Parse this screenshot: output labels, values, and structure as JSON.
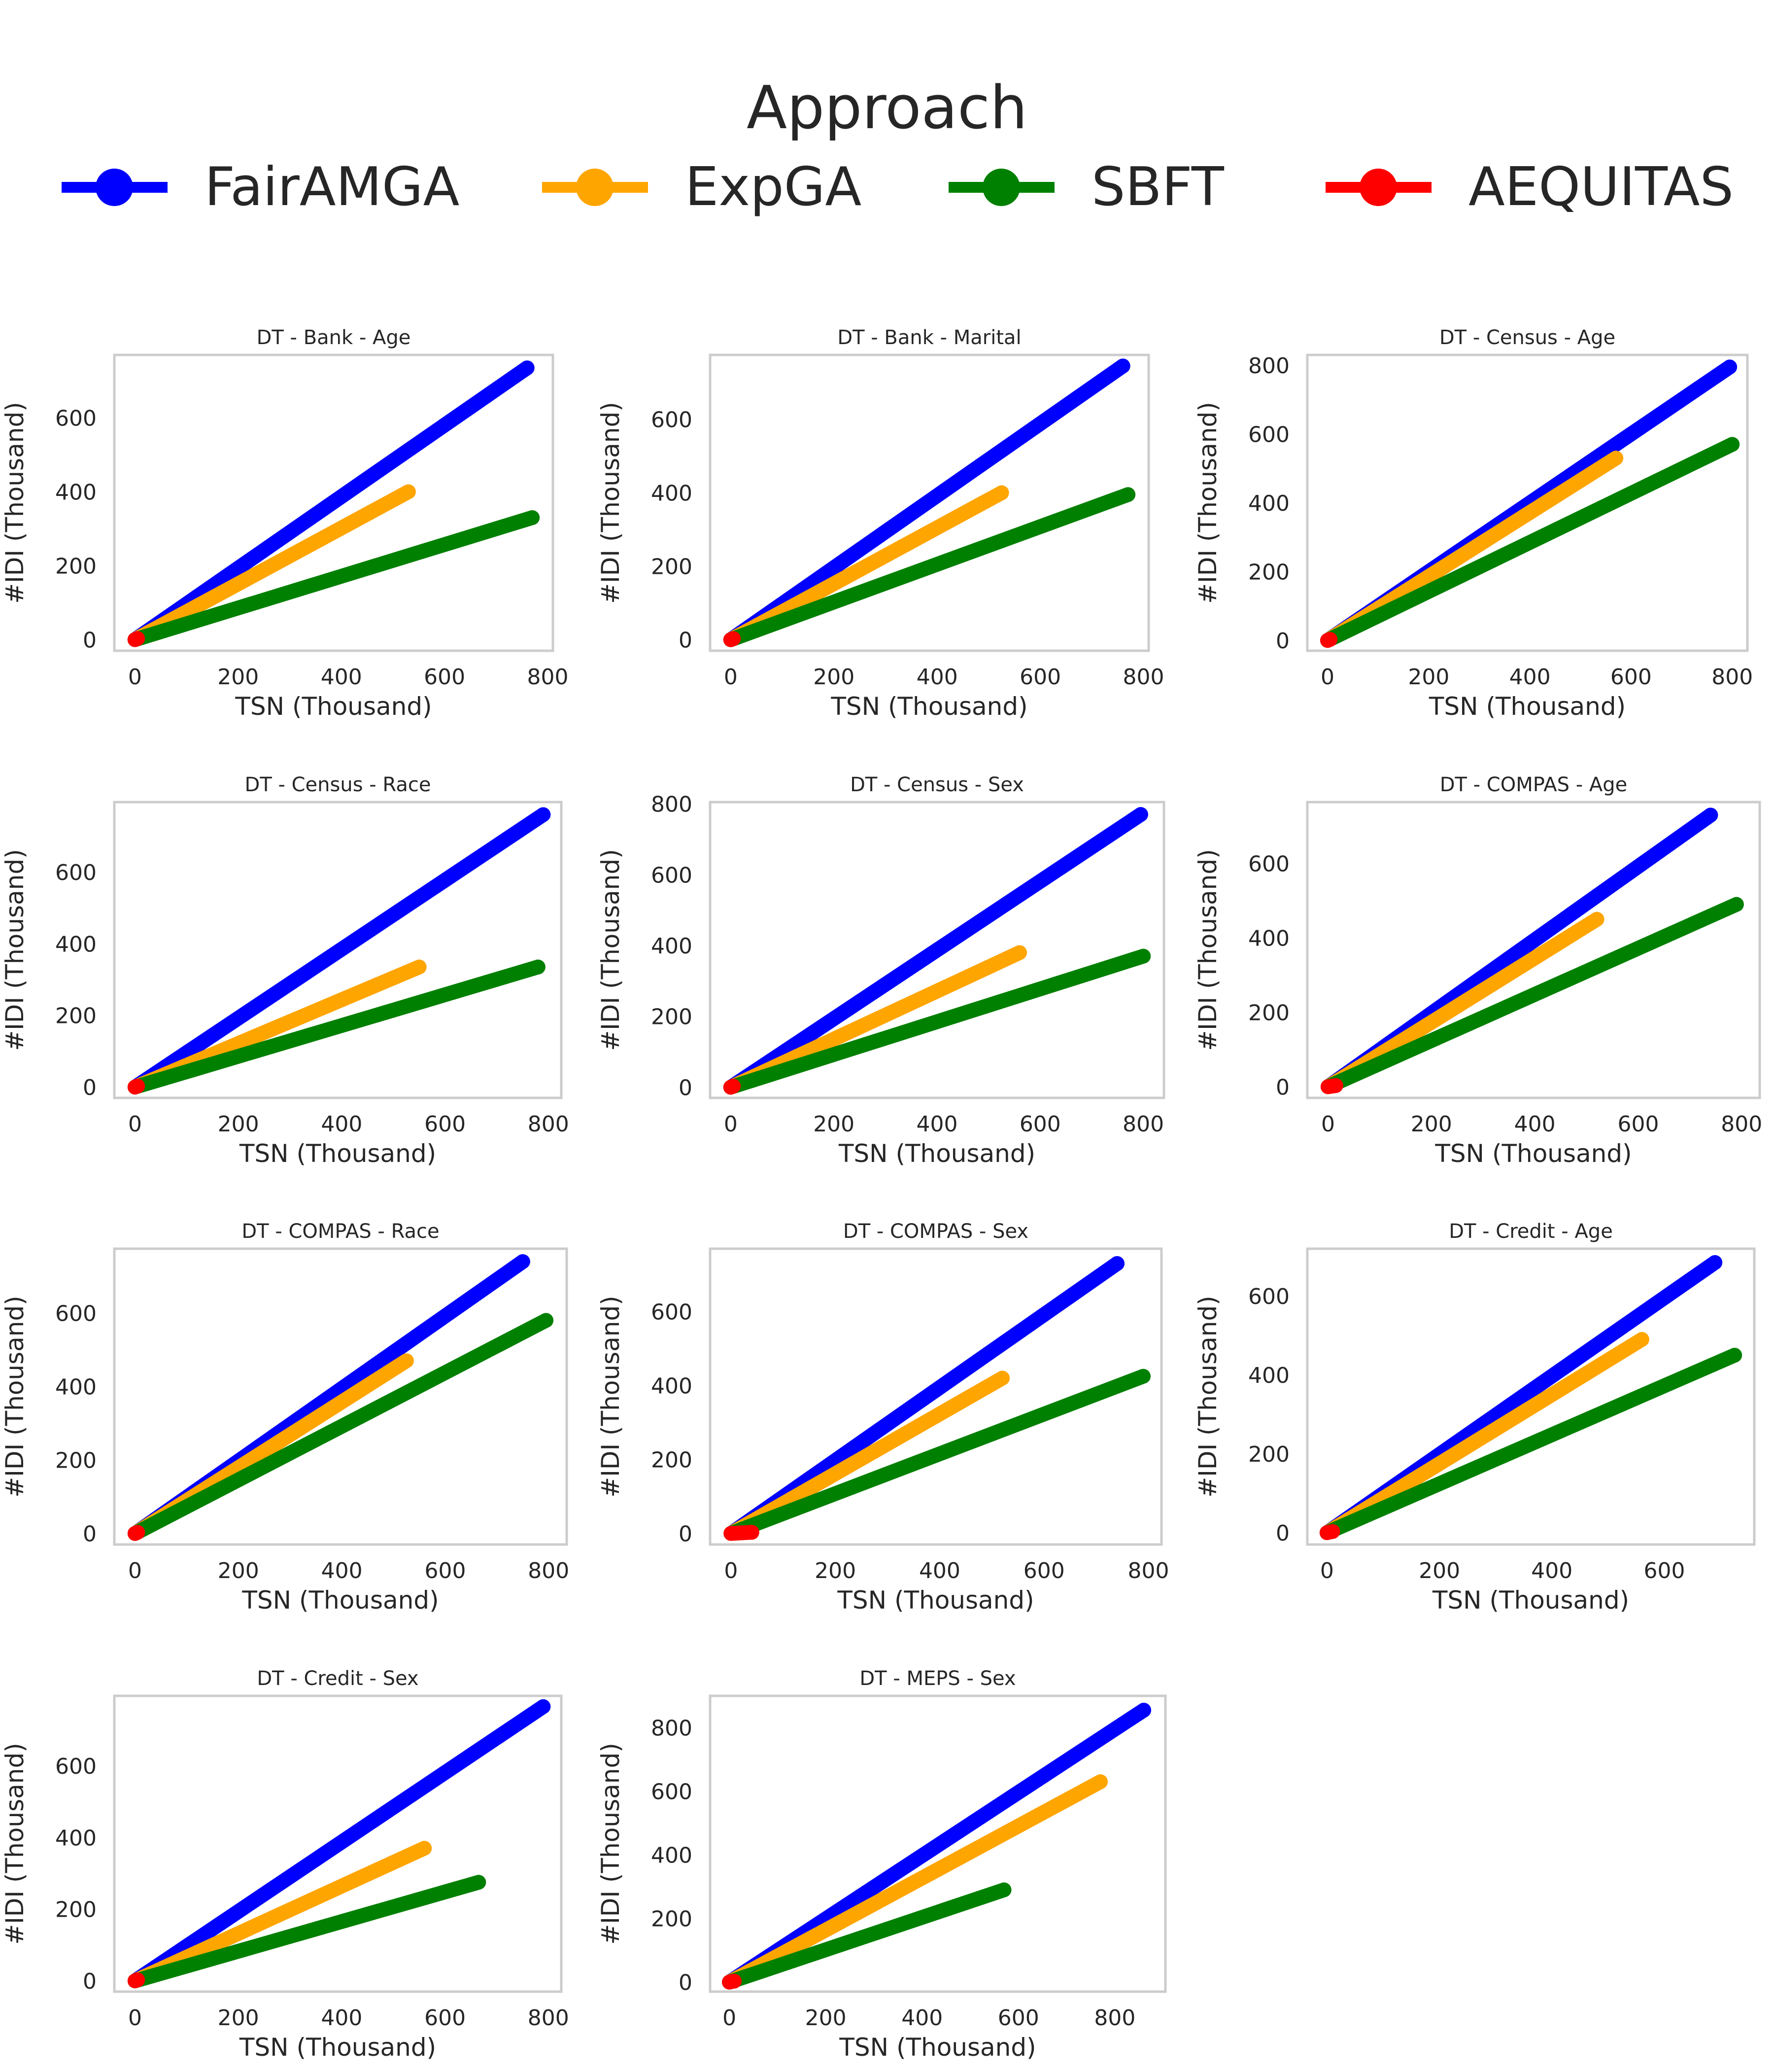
{
  "legend": {
    "title": "Approach",
    "entries": [
      {
        "name": "FairAMGA",
        "color": "#0000ff"
      },
      {
        "name": "ExpGA",
        "color": "#ffa500"
      },
      {
        "name": "SBFT",
        "color": "#008000"
      },
      {
        "name": "AEQUITAS",
        "color": "#ff0000"
      }
    ]
  },
  "axis_labels": {
    "x": "TSN (Thousand)",
    "y": "#IDI (Thousand)"
  },
  "chart_data": [
    {
      "type": "line",
      "title": "DT - Bank - Age",
      "xlabel": "TSN (Thousand)",
      "ylabel": "#IDI (Thousand)",
      "xlim": [
        -40,
        810
      ],
      "ylim": [
        -30,
        770
      ],
      "xticks": [
        0,
        200,
        400,
        600,
        800
      ],
      "yticks": [
        0,
        200,
        400,
        600
      ],
      "series": [
        {
          "name": "FairAMGA",
          "x": [
            0,
            760
          ],
          "y": [
            0,
            735
          ]
        },
        {
          "name": "ExpGA",
          "x": [
            0,
            530
          ],
          "y": [
            0,
            400
          ]
        },
        {
          "name": "SBFT",
          "x": [
            0,
            770
          ],
          "y": [
            0,
            330
          ]
        },
        {
          "name": "AEQUITAS",
          "x": [
            0,
            5
          ],
          "y": [
            0,
            3
          ]
        }
      ]
    },
    {
      "type": "line",
      "title": "DT - Bank - Marital",
      "xlabel": "TSN (Thousand)",
      "ylabel": "#IDI (Thousand)",
      "xlim": [
        -40,
        810
      ],
      "ylim": [
        -30,
        775
      ],
      "xticks": [
        0,
        200,
        400,
        600,
        800
      ],
      "yticks": [
        0,
        200,
        400,
        600
      ],
      "series": [
        {
          "name": "FairAMGA",
          "x": [
            0,
            760
          ],
          "y": [
            0,
            745
          ]
        },
        {
          "name": "ExpGA",
          "x": [
            0,
            525
          ],
          "y": [
            0,
            400
          ]
        },
        {
          "name": "SBFT",
          "x": [
            0,
            770
          ],
          "y": [
            0,
            395
          ]
        },
        {
          "name": "AEQUITAS",
          "x": [
            0,
            5
          ],
          "y": [
            0,
            3
          ]
        }
      ]
    },
    {
      "type": "line",
      "title": "DT - Census - Age",
      "xlabel": "TSN (Thousand)",
      "ylabel": "#IDI (Thousand)",
      "xlim": [
        -40,
        830
      ],
      "ylim": [
        -30,
        830
      ],
      "xticks": [
        0,
        200,
        400,
        600,
        800
      ],
      "yticks": [
        0,
        200,
        400,
        600,
        800
      ],
      "series": [
        {
          "name": "FairAMGA",
          "x": [
            0,
            795
          ],
          "y": [
            0,
            795
          ]
        },
        {
          "name": "ExpGA",
          "x": [
            0,
            570
          ],
          "y": [
            0,
            530
          ]
        },
        {
          "name": "SBFT",
          "x": [
            0,
            800
          ],
          "y": [
            0,
            570
          ]
        },
        {
          "name": "AEQUITAS",
          "x": [
            0,
            5
          ],
          "y": [
            0,
            3
          ]
        }
      ]
    },
    {
      "type": "line",
      "title": "DT - Census - Race",
      "xlabel": "TSN (Thousand)",
      "ylabel": "#IDI (Thousand)",
      "xlim": [
        -40,
        825
      ],
      "ylim": [
        -30,
        795
      ],
      "xticks": [
        0,
        200,
        400,
        600,
        800
      ],
      "yticks": [
        0,
        200,
        400,
        600
      ],
      "series": [
        {
          "name": "FairAMGA",
          "x": [
            0,
            790
          ],
          "y": [
            0,
            760
          ]
        },
        {
          "name": "ExpGA",
          "x": [
            0,
            550
          ],
          "y": [
            0,
            335
          ]
        },
        {
          "name": "SBFT",
          "x": [
            0,
            780
          ],
          "y": [
            0,
            335
          ]
        },
        {
          "name": "AEQUITAS",
          "x": [
            0,
            5
          ],
          "y": [
            0,
            3
          ]
        }
      ]
    },
    {
      "type": "line",
      "title": "DT - Census - Sex",
      "xlabel": "TSN (Thousand)",
      "ylabel": "#IDI (Thousand)",
      "xlim": [
        -40,
        840
      ],
      "ylim": [
        -30,
        805
      ],
      "xticks": [
        0,
        200,
        400,
        600,
        800
      ],
      "yticks": [
        0,
        200,
        400,
        600,
        800
      ],
      "series": [
        {
          "name": "FairAMGA",
          "x": [
            0,
            795
          ],
          "y": [
            0,
            770
          ]
        },
        {
          "name": "ExpGA",
          "x": [
            0,
            560
          ],
          "y": [
            0,
            380
          ]
        },
        {
          "name": "SBFT",
          "x": [
            0,
            800
          ],
          "y": [
            0,
            370
          ]
        },
        {
          "name": "AEQUITAS",
          "x": [
            0,
            5
          ],
          "y": [
            0,
            3
          ]
        }
      ]
    },
    {
      "type": "line",
      "title": "DT - COMPAS - Age",
      "xlabel": "TSN (Thousand)",
      "ylabel": "#IDI (Thousand)",
      "xlim": [
        -40,
        835
      ],
      "ylim": [
        -30,
        765
      ],
      "xticks": [
        0,
        200,
        400,
        600,
        800
      ],
      "yticks": [
        0,
        200,
        400,
        600
      ],
      "series": [
        {
          "name": "FairAMGA",
          "x": [
            0,
            740
          ],
          "y": [
            0,
            730
          ]
        },
        {
          "name": "ExpGA",
          "x": [
            0,
            520
          ],
          "y": [
            0,
            450
          ]
        },
        {
          "name": "SBFT",
          "x": [
            0,
            790
          ],
          "y": [
            0,
            490
          ]
        },
        {
          "name": "AEQUITAS",
          "x": [
            0,
            15
          ],
          "y": [
            0,
            3
          ]
        }
      ]
    },
    {
      "type": "line",
      "title": "DT - COMPAS - Race",
      "xlabel": "TSN (Thousand)",
      "ylabel": "#IDI (Thousand)",
      "xlim": [
        -40,
        835
      ],
      "ylim": [
        -30,
        775
      ],
      "xticks": [
        0,
        200,
        400,
        600,
        800
      ],
      "yticks": [
        0,
        200,
        400,
        600
      ],
      "series": [
        {
          "name": "FairAMGA",
          "x": [
            0,
            750
          ],
          "y": [
            0,
            740
          ]
        },
        {
          "name": "ExpGA",
          "x": [
            0,
            525
          ],
          "y": [
            0,
            470
          ]
        },
        {
          "name": "SBFT",
          "x": [
            0,
            795
          ],
          "y": [
            0,
            580
          ]
        },
        {
          "name": "AEQUITAS",
          "x": [
            0,
            5
          ],
          "y": [
            0,
            3
          ]
        }
      ]
    },
    {
      "type": "line",
      "title": "DT - COMPAS - Sex",
      "xlabel": "TSN (Thousand)",
      "ylabel": "#IDI (Thousand)",
      "xlim": [
        -40,
        825
      ],
      "ylim": [
        -30,
        770
      ],
      "xticks": [
        0,
        200,
        400,
        600,
        800
      ],
      "yticks": [
        0,
        200,
        400,
        600
      ],
      "series": [
        {
          "name": "FairAMGA",
          "x": [
            0,
            740
          ],
          "y": [
            0,
            730
          ]
        },
        {
          "name": "ExpGA",
          "x": [
            0,
            520
          ],
          "y": [
            0,
            420
          ]
        },
        {
          "name": "SBFT",
          "x": [
            0,
            790
          ],
          "y": [
            0,
            425
          ]
        },
        {
          "name": "AEQUITAS",
          "x": [
            0,
            40
          ],
          "y": [
            0,
            3
          ]
        }
      ]
    },
    {
      "type": "line",
      "title": "DT - Credit - Age",
      "xlabel": "TSN (Thousand)",
      "ylabel": "#IDI (Thousand)",
      "xlim": [
        -35,
        760
      ],
      "ylim": [
        -30,
        720
      ],
      "xticks": [
        0,
        200,
        400,
        600
      ],
      "yticks": [
        0,
        200,
        400,
        600
      ],
      "series": [
        {
          "name": "FairAMGA",
          "x": [
            0,
            690
          ],
          "y": [
            0,
            685
          ]
        },
        {
          "name": "ExpGA",
          "x": [
            0,
            560
          ],
          "y": [
            0,
            490
          ]
        },
        {
          "name": "SBFT",
          "x": [
            0,
            725
          ],
          "y": [
            0,
            450
          ]
        },
        {
          "name": "AEQUITAS",
          "x": [
            0,
            10
          ],
          "y": [
            0,
            3
          ]
        }
      ]
    },
    {
      "type": "line",
      "title": "DT - Credit - Sex",
      "xlabel": "TSN (Thousand)",
      "ylabel": "#IDI (Thousand)",
      "xlim": [
        -40,
        825
      ],
      "ylim": [
        -30,
        795
      ],
      "xticks": [
        0,
        200,
        400,
        600,
        800
      ],
      "yticks": [
        0,
        200,
        400,
        600
      ],
      "series": [
        {
          "name": "FairAMGA",
          "x": [
            0,
            790
          ],
          "y": [
            0,
            765
          ]
        },
        {
          "name": "ExpGA",
          "x": [
            0,
            560
          ],
          "y": [
            0,
            370
          ]
        },
        {
          "name": "SBFT",
          "x": [
            0,
            665
          ],
          "y": [
            0,
            275
          ]
        },
        {
          "name": "AEQUITAS",
          "x": [
            0,
            5
          ],
          "y": [
            0,
            3
          ]
        }
      ]
    },
    {
      "type": "line",
      "title": "DT - MEPS - Sex",
      "xlabel": "TSN (Thousand)",
      "ylabel": "#IDI (Thousand)",
      "xlim": [
        -40,
        905
      ],
      "ylim": [
        -30,
        900
      ],
      "xticks": [
        0,
        200,
        400,
        600,
        800
      ],
      "yticks": [
        0,
        200,
        400,
        600,
        800
      ],
      "series": [
        {
          "name": "FairAMGA",
          "x": [
            0,
            860
          ],
          "y": [
            0,
            855
          ]
        },
        {
          "name": "ExpGA",
          "x": [
            0,
            770
          ],
          "y": [
            0,
            630
          ]
        },
        {
          "name": "SBFT",
          "x": [
            0,
            570
          ],
          "y": [
            0,
            290
          ]
        },
        {
          "name": "AEQUITAS",
          "x": [
            0,
            10
          ],
          "y": [
            0,
            3
          ]
        }
      ]
    }
  ]
}
